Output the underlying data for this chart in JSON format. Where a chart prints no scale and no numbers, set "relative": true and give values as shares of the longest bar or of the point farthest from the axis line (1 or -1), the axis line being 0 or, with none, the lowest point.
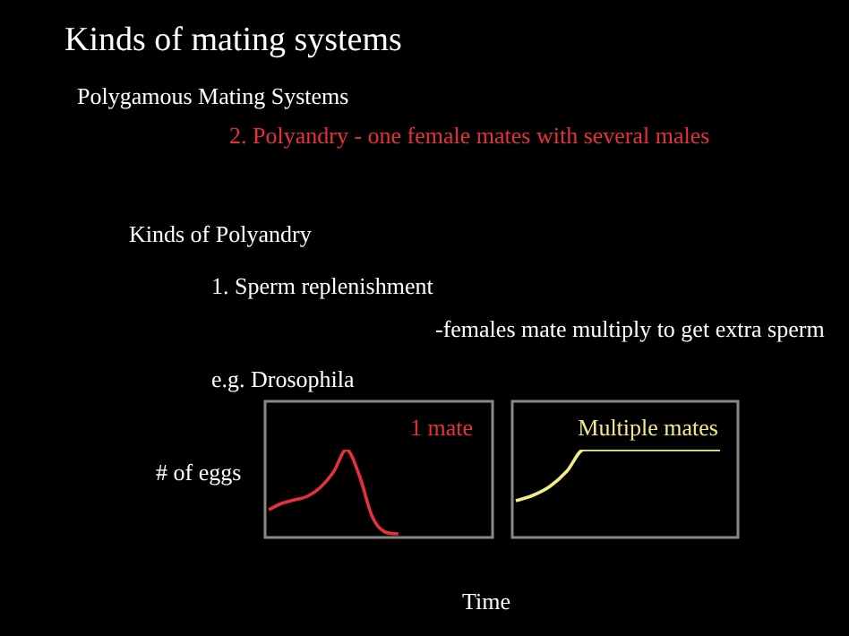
{
  "chart_data": [
    {
      "type": "line",
      "title": "Kinds of mating systems",
      "annotations": [
        "Polygamous Mating Systems",
        "2. Polyandry - one female mates with several males",
        "Kinds of Polyandry",
        "1. Sperm replenishment",
        "-females mate multiply to get extra sperm",
        "e.g. Drosophila"
      ],
      "ylabel": "# of eggs",
      "xlabel": "Time",
      "relative": true,
      "categories": [
        null,
        null,
        null,
        null,
        null,
        null,
        null,
        null,
        null,
        null,
        null,
        null,
        null,
        null,
        null,
        null,
        null,
        null
      ],
      "series": [
        {
          "name": "1 mate",
          "color": "#e8303a",
          "values": [
            0.33,
            0.4,
            0.44,
            0.48,
            0.58,
            0.75,
            1,
            0.71,
            0.25,
            0.08,
            0.06,
            null,
            null,
            null,
            null,
            null,
            null,
            null
          ]
        }
      ]
    },
    {
      "type": "line",
      "relative": true,
      "categories": [
        null,
        null,
        null,
        null,
        null,
        null,
        null,
        null,
        null,
        null,
        null,
        null,
        null
      ],
      "series": [
        {
          "name": "Multiple mates",
          "color": "#f2ec86",
          "values": [
            0.43,
            0.49,
            0.59,
            0.76,
            1,
            1,
            1,
            1,
            1,
            1,
            1,
            1,
            1
          ]
        }
      ]
    }
  ]
}
